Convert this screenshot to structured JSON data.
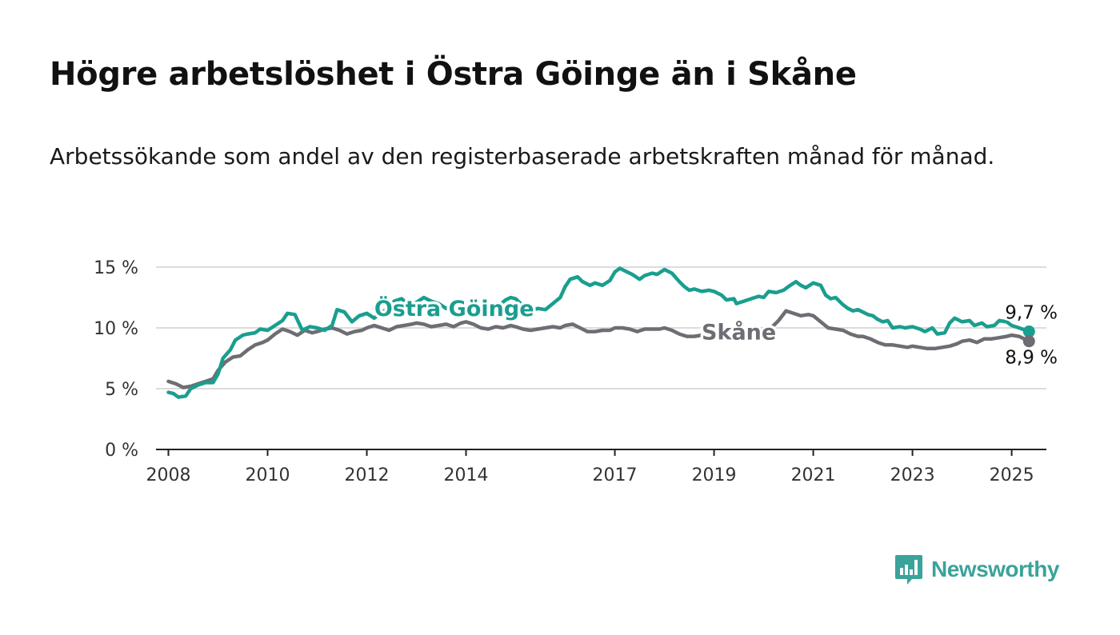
{
  "title": "Högre arbetslöshet i Östra Göinge än i Skåne",
  "subtitle": "Arbetssökande som andel av den registerbaserade arbetskraften månad för månad.",
  "brand": {
    "name": "Newsworthy",
    "icon": "newsworthy-logo-icon",
    "color": "#3aa39a"
  },
  "chart_data": {
    "type": "line",
    "title": "Högre arbetslöshet i Östra Göinge än i Skåne",
    "subtitle": "Arbetssökande som andel av den registerbaserade arbetskraften månad för månad.",
    "xlabel": "",
    "ylabel": "",
    "xlim": [
      2007.75,
      2025.7
    ],
    "ylim": [
      0,
      15
    ],
    "grid": true,
    "legend": "direct-labels",
    "x_ticks": [
      {
        "value": 2008,
        "label": "2008"
      },
      {
        "value": 2010,
        "label": "2010"
      },
      {
        "value": 2012,
        "label": "2012"
      },
      {
        "value": 2014,
        "label": "2014"
      },
      {
        "value": 2017,
        "label": "2017"
      },
      {
        "value": 2019,
        "label": "2019"
      },
      {
        "value": 2021,
        "label": "2021"
      },
      {
        "value": 2023,
        "label": "2023"
      },
      {
        "value": 2025,
        "label": "2025"
      }
    ],
    "y_ticks": [
      {
        "value": 0,
        "label": "0 %"
      },
      {
        "value": 5,
        "label": "5 %"
      },
      {
        "value": 10,
        "label": "10 %"
      },
      {
        "value": 15,
        "label": "15 %"
      }
    ],
    "series": [
      {
        "name": "Östra Göinge",
        "color": "#1a9e8f",
        "end_label": "9,7 %",
        "points": [
          [
            2008.0,
            4.7
          ],
          [
            2008.1,
            4.6
          ],
          [
            2008.2,
            4.3
          ],
          [
            2008.35,
            4.4
          ],
          [
            2008.45,
            5.0
          ],
          [
            2008.6,
            5.3
          ],
          [
            2008.75,
            5.5
          ],
          [
            2008.9,
            5.5
          ],
          [
            2009.0,
            6.2
          ],
          [
            2009.1,
            7.5
          ],
          [
            2009.25,
            8.2
          ],
          [
            2009.35,
            9.0
          ],
          [
            2009.5,
            9.4
          ],
          [
            2009.6,
            9.5
          ],
          [
            2009.75,
            9.6
          ],
          [
            2009.85,
            9.9
          ],
          [
            2010.0,
            9.8
          ],
          [
            2010.15,
            10.2
          ],
          [
            2010.3,
            10.6
          ],
          [
            2010.4,
            11.2
          ],
          [
            2010.55,
            11.1
          ],
          [
            2010.7,
            9.8
          ],
          [
            2010.85,
            10.1
          ],
          [
            2011.0,
            10.0
          ],
          [
            2011.15,
            9.8
          ],
          [
            2011.3,
            10.2
          ],
          [
            2011.4,
            11.5
          ],
          [
            2011.55,
            11.3
          ],
          [
            2011.7,
            10.5
          ],
          [
            2011.85,
            11.0
          ],
          [
            2012.0,
            11.2
          ],
          [
            2012.15,
            10.8
          ],
          [
            2012.3,
            11.3
          ],
          [
            2012.45,
            11.6
          ],
          [
            2012.55,
            12.2
          ],
          [
            2012.7,
            12.4
          ],
          [
            2012.85,
            11.9
          ],
          [
            2013.0,
            12.1
          ],
          [
            2013.15,
            12.5
          ],
          [
            2013.3,
            12.2
          ],
          [
            2013.45,
            12.0
          ],
          [
            2013.6,
            11.6
          ],
          [
            2013.75,
            11.9
          ],
          [
            2013.9,
            11.5
          ],
          [
            2014.05,
            11.7
          ],
          [
            2014.2,
            11.2
          ],
          [
            2014.35,
            11.4
          ],
          [
            2014.5,
            11.6
          ],
          [
            2014.65,
            11.8
          ],
          [
            2014.8,
            12.3
          ],
          [
            2014.9,
            12.5
          ],
          [
            2015.0,
            12.4
          ],
          [
            2015.15,
            11.8
          ],
          [
            2015.3,
            11.4
          ],
          [
            2015.45,
            11.6
          ],
          [
            2015.6,
            11.5
          ],
          [
            2015.75,
            12.0
          ],
          [
            2015.9,
            12.5
          ],
          [
            2016.0,
            13.4
          ],
          [
            2016.1,
            14.0
          ],
          [
            2016.25,
            14.2
          ],
          [
            2016.35,
            13.8
          ],
          [
            2016.5,
            13.5
          ],
          [
            2016.6,
            13.7
          ],
          [
            2016.75,
            13.5
          ],
          [
            2016.9,
            13.9
          ],
          [
            2017.0,
            14.6
          ],
          [
            2017.1,
            14.9
          ],
          [
            2017.2,
            14.7
          ],
          [
            2017.35,
            14.4
          ],
          [
            2017.5,
            14.0
          ],
          [
            2017.6,
            14.3
          ],
          [
            2017.75,
            14.5
          ],
          [
            2017.85,
            14.4
          ],
          [
            2018.0,
            14.8
          ],
          [
            2018.15,
            14.5
          ],
          [
            2018.3,
            13.8
          ],
          [
            2018.4,
            13.4
          ],
          [
            2018.5,
            13.1
          ],
          [
            2018.6,
            13.2
          ],
          [
            2018.75,
            13.0
          ],
          [
            2018.9,
            13.1
          ],
          [
            2019.0,
            13.0
          ],
          [
            2019.15,
            12.7
          ],
          [
            2019.25,
            12.3
          ],
          [
            2019.4,
            12.4
          ],
          [
            2019.45,
            12.0
          ],
          [
            2019.6,
            12.2
          ],
          [
            2019.75,
            12.4
          ],
          [
            2019.9,
            12.6
          ],
          [
            2020.0,
            12.5
          ],
          [
            2020.1,
            13.0
          ],
          [
            2020.25,
            12.9
          ],
          [
            2020.4,
            13.1
          ],
          [
            2020.5,
            13.4
          ],
          [
            2020.65,
            13.8
          ],
          [
            2020.75,
            13.5
          ],
          [
            2020.85,
            13.3
          ],
          [
            2021.0,
            13.7
          ],
          [
            2021.15,
            13.5
          ],
          [
            2021.25,
            12.7
          ],
          [
            2021.35,
            12.4
          ],
          [
            2021.45,
            12.5
          ],
          [
            2021.6,
            11.9
          ],
          [
            2021.7,
            11.6
          ],
          [
            2021.8,
            11.4
          ],
          [
            2021.9,
            11.5
          ],
          [
            2022.0,
            11.3
          ],
          [
            2022.1,
            11.1
          ],
          [
            2022.2,
            11.0
          ],
          [
            2022.3,
            10.7
          ],
          [
            2022.4,
            10.5
          ],
          [
            2022.5,
            10.6
          ],
          [
            2022.6,
            10.0
          ],
          [
            2022.75,
            10.1
          ],
          [
            2022.85,
            10.0
          ],
          [
            2023.0,
            10.1
          ],
          [
            2023.15,
            9.9
          ],
          [
            2023.25,
            9.7
          ],
          [
            2023.4,
            10.0
          ],
          [
            2023.5,
            9.5
          ],
          [
            2023.65,
            9.6
          ],
          [
            2023.75,
            10.4
          ],
          [
            2023.85,
            10.8
          ],
          [
            2024.0,
            10.5
          ],
          [
            2024.15,
            10.6
          ],
          [
            2024.25,
            10.2
          ],
          [
            2024.4,
            10.4
          ],
          [
            2024.5,
            10.1
          ],
          [
            2024.65,
            10.2
          ],
          [
            2024.75,
            10.6
          ],
          [
            2024.9,
            10.5
          ],
          [
            2025.0,
            10.2
          ],
          [
            2025.15,
            10.0
          ],
          [
            2025.35,
            9.7
          ]
        ]
      },
      {
        "name": "Skåne",
        "color": "#6e6d73",
        "end_label": "8,9 %",
        "points": [
          [
            2008.0,
            5.6
          ],
          [
            2008.15,
            5.4
          ],
          [
            2008.3,
            5.1
          ],
          [
            2008.45,
            5.2
          ],
          [
            2008.6,
            5.4
          ],
          [
            2008.75,
            5.6
          ],
          [
            2008.9,
            5.8
          ],
          [
            2009.0,
            6.5
          ],
          [
            2009.15,
            7.2
          ],
          [
            2009.3,
            7.6
          ],
          [
            2009.45,
            7.7
          ],
          [
            2009.6,
            8.2
          ],
          [
            2009.75,
            8.6
          ],
          [
            2009.9,
            8.8
          ],
          [
            2010.0,
            9.0
          ],
          [
            2010.15,
            9.5
          ],
          [
            2010.3,
            9.9
          ],
          [
            2010.45,
            9.7
          ],
          [
            2010.6,
            9.4
          ],
          [
            2010.75,
            9.8
          ],
          [
            2010.9,
            9.6
          ],
          [
            2011.0,
            9.7
          ],
          [
            2011.15,
            9.9
          ],
          [
            2011.3,
            10.0
          ],
          [
            2011.45,
            9.8
          ],
          [
            2011.6,
            9.5
          ],
          [
            2011.75,
            9.7
          ],
          [
            2011.9,
            9.8
          ],
          [
            2012.0,
            10.0
          ],
          [
            2012.15,
            10.2
          ],
          [
            2012.3,
            10.0
          ],
          [
            2012.45,
            9.8
          ],
          [
            2012.6,
            10.1
          ],
          [
            2012.75,
            10.2
          ],
          [
            2012.9,
            10.3
          ],
          [
            2013.0,
            10.4
          ],
          [
            2013.15,
            10.3
          ],
          [
            2013.3,
            10.1
          ],
          [
            2013.45,
            10.2
          ],
          [
            2013.6,
            10.3
          ],
          [
            2013.75,
            10.1
          ],
          [
            2013.9,
            10.4
          ],
          [
            2014.0,
            10.5
          ],
          [
            2014.15,
            10.3
          ],
          [
            2014.3,
            10.0
          ],
          [
            2014.45,
            9.9
          ],
          [
            2014.6,
            10.1
          ],
          [
            2014.75,
            10.0
          ],
          [
            2014.9,
            10.2
          ],
          [
            2015.0,
            10.1
          ],
          [
            2015.15,
            9.9
          ],
          [
            2015.3,
            9.8
          ],
          [
            2015.45,
            9.9
          ],
          [
            2015.6,
            10.0
          ],
          [
            2015.75,
            10.1
          ],
          [
            2015.9,
            10.0
          ],
          [
            2016.0,
            10.2
          ],
          [
            2016.15,
            10.3
          ],
          [
            2016.3,
            10.0
          ],
          [
            2016.45,
            9.7
          ],
          [
            2016.6,
            9.7
          ],
          [
            2016.75,
            9.8
          ],
          [
            2016.9,
            9.8
          ],
          [
            2017.0,
            10.0
          ],
          [
            2017.15,
            10.0
          ],
          [
            2017.3,
            9.9
          ],
          [
            2017.45,
            9.7
          ],
          [
            2017.6,
            9.9
          ],
          [
            2017.75,
            9.9
          ],
          [
            2017.9,
            9.9
          ],
          [
            2018.0,
            10.0
          ],
          [
            2018.15,
            9.8
          ],
          [
            2018.3,
            9.5
          ],
          [
            2018.45,
            9.3
          ],
          [
            2018.6,
            9.3
          ],
          [
            2018.75,
            9.4
          ],
          [
            2018.9,
            9.5
          ],
          [
            2019.0,
            9.5
          ],
          [
            2019.15,
            9.6
          ],
          [
            2019.3,
            9.8
          ],
          [
            2019.45,
            9.6
          ],
          [
            2019.6,
            9.7
          ],
          [
            2019.75,
            9.8
          ],
          [
            2019.9,
            9.9
          ],
          [
            2020.0,
            9.9
          ],
          [
            2020.15,
            10.0
          ],
          [
            2020.3,
            10.6
          ],
          [
            2020.45,
            11.4
          ],
          [
            2020.6,
            11.2
          ],
          [
            2020.75,
            11.0
          ],
          [
            2020.9,
            11.1
          ],
          [
            2021.0,
            11.0
          ],
          [
            2021.15,
            10.5
          ],
          [
            2021.3,
            10.0
          ],
          [
            2021.45,
            9.9
          ],
          [
            2021.6,
            9.8
          ],
          [
            2021.75,
            9.5
          ],
          [
            2021.9,
            9.3
          ],
          [
            2022.0,
            9.3
          ],
          [
            2022.15,
            9.1
          ],
          [
            2022.3,
            8.8
          ],
          [
            2022.45,
            8.6
          ],
          [
            2022.6,
            8.6
          ],
          [
            2022.75,
            8.5
          ],
          [
            2022.9,
            8.4
          ],
          [
            2023.0,
            8.5
          ],
          [
            2023.15,
            8.4
          ],
          [
            2023.3,
            8.3
          ],
          [
            2023.45,
            8.3
          ],
          [
            2023.6,
            8.4
          ],
          [
            2023.75,
            8.5
          ],
          [
            2023.9,
            8.7
          ],
          [
            2024.0,
            8.9
          ],
          [
            2024.15,
            9.0
          ],
          [
            2024.3,
            8.8
          ],
          [
            2024.45,
            9.1
          ],
          [
            2024.6,
            9.1
          ],
          [
            2024.75,
            9.2
          ],
          [
            2024.9,
            9.3
          ],
          [
            2025.0,
            9.4
          ],
          [
            2025.15,
            9.3
          ],
          [
            2025.35,
            8.9
          ]
        ]
      }
    ]
  }
}
